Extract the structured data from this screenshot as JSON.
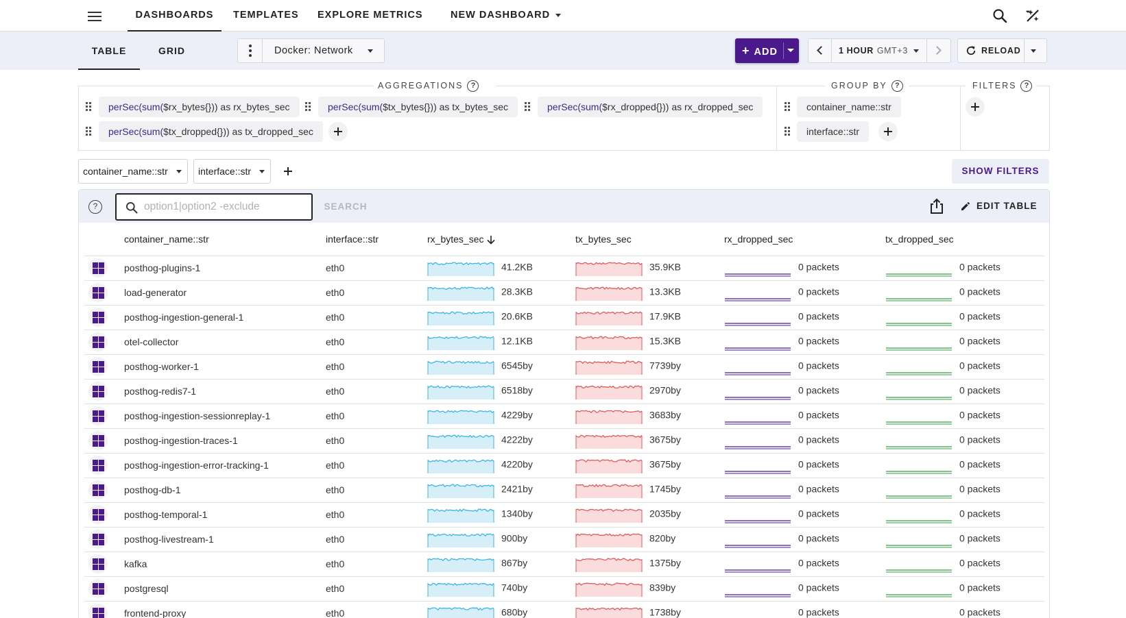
{
  "nav": {
    "tabs": [
      {
        "label": "DASHBOARDS",
        "active": true
      },
      {
        "label": "TEMPLATES"
      },
      {
        "label": "EXPLORE METRICS"
      },
      {
        "label": "NEW DASHBOARD"
      }
    ]
  },
  "subnav": {
    "tabs": [
      {
        "label": "TABLE",
        "active": true
      },
      {
        "label": "GRID"
      }
    ],
    "dashboard_name": "Docker: Network",
    "add_label": "ADD",
    "time_range": "1 HOUR",
    "timezone": "GMT+3",
    "reload_label": "RELOAD"
  },
  "config": {
    "aggregations_title": "AGGREGATIONS",
    "group_by_title": "GROUP BY",
    "filters_title": "FILTERS",
    "aggregations": [
      {
        "fn": "perSec(sum(",
        "rest": "$rx_bytes{})) as rx_bytes_sec"
      },
      {
        "fn": "perSec(sum(",
        "rest": "$tx_bytes{})) as tx_bytes_sec"
      },
      {
        "fn": "perSec(sum(",
        "rest": "$rx_dropped{})) as rx_dropped_sec"
      },
      {
        "fn": "perSec(sum(",
        "rest": "$tx_dropped{})) as tx_dropped_sec"
      }
    ],
    "group_by": [
      "container_name::str",
      "interface::str"
    ]
  },
  "group_selects": [
    "container_name::str",
    "interface::str"
  ],
  "show_filters_label": "SHOW FILTERS",
  "toolbar": {
    "search_placeholder": "option1|option2 -exclude",
    "search_label": "SEARCH",
    "edit_table_label": "EDIT TABLE"
  },
  "colors": {
    "accent": "#4a1a8c",
    "rx": "#3bb5e6",
    "tx": "#e05a5a",
    "rx_dropped": "#4a1a8c",
    "tx_dropped": "#3aa048"
  },
  "table": {
    "columns": [
      "container_name::str",
      "interface::str",
      "rx_bytes_sec",
      "tx_bytes_sec",
      "rx_dropped_sec",
      "tx_dropped_sec"
    ],
    "rows": [
      {
        "container": "posthog-plugins-1",
        "iface": "eth0",
        "rx": "41.2KB",
        "tx": "35.9KB",
        "rxd": "0 packets",
        "txd": "0 packets"
      },
      {
        "container": "load-generator",
        "iface": "eth0",
        "rx": "28.3KB",
        "tx": "13.3KB",
        "rxd": "0 packets",
        "txd": "0 packets"
      },
      {
        "container": "posthog-ingestion-general-1",
        "iface": "eth0",
        "rx": "20.6KB",
        "tx": "17.9KB",
        "rxd": "0 packets",
        "txd": "0 packets"
      },
      {
        "container": "otel-collector",
        "iface": "eth0",
        "rx": "12.1KB",
        "tx": "15.3KB",
        "rxd": "0 packets",
        "txd": "0 packets"
      },
      {
        "container": "posthog-worker-1",
        "iface": "eth0",
        "rx": "6545by",
        "tx": "7739by",
        "rxd": "0 packets",
        "txd": "0 packets"
      },
      {
        "container": "posthog-redis7-1",
        "iface": "eth0",
        "rx": "6518by",
        "tx": "2970by",
        "rxd": "0 packets",
        "txd": "0 packets"
      },
      {
        "container": "posthog-ingestion-sessionreplay-1",
        "iface": "eth0",
        "rx": "4229by",
        "tx": "3683by",
        "rxd": "0 packets",
        "txd": "0 packets"
      },
      {
        "container": "posthog-ingestion-traces-1",
        "iface": "eth0",
        "rx": "4222by",
        "tx": "3675by",
        "rxd": "0 packets",
        "txd": "0 packets"
      },
      {
        "container": "posthog-ingestion-error-tracking-1",
        "iface": "eth0",
        "rx": "4220by",
        "tx": "3675by",
        "rxd": "0 packets",
        "txd": "0 packets"
      },
      {
        "container": "posthog-db-1",
        "iface": "eth0",
        "rx": "2421by",
        "tx": "1745by",
        "rxd": "0 packets",
        "txd": "0 packets"
      },
      {
        "container": "posthog-temporal-1",
        "iface": "eth0",
        "rx": "1340by",
        "tx": "2035by",
        "rxd": "0 packets",
        "txd": "0 packets"
      },
      {
        "container": "posthog-livestream-1",
        "iface": "eth0",
        "rx": "900by",
        "tx": "820by",
        "rxd": "0 packets",
        "txd": "0 packets"
      },
      {
        "container": "kafka",
        "iface": "eth0",
        "rx": "867by",
        "tx": "1375by",
        "rxd": "0 packets",
        "txd": "0 packets"
      },
      {
        "container": "postgresql",
        "iface": "eth0",
        "rx": "740by",
        "tx": "839by",
        "rxd": "0 packets",
        "txd": "0 packets"
      },
      {
        "container": "frontend-proxy",
        "iface": "eth0",
        "rx": "680by",
        "tx": "1738by",
        "rxd": "0 packets",
        "txd": "0 packets"
      }
    ]
  }
}
